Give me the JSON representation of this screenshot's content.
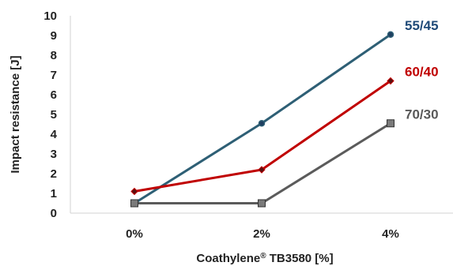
{
  "chart_data": {
    "type": "line",
    "categories": [
      "0%",
      "2%",
      "4%"
    ],
    "ylabel": "Impact resistance [J]",
    "xlabel": {
      "main": "Coathylene",
      "sup": "®",
      "rest": " TB3580 [%]"
    },
    "ylim": [
      0,
      10
    ],
    "yticks": [
      "0",
      "1",
      "2",
      "3",
      "4",
      "5",
      "6",
      "7",
      "8",
      "9",
      "10"
    ],
    "grid": false,
    "legend": "inline-right",
    "series": [
      {
        "name": "55/45",
        "values": [
          0.5,
          4.55,
          9.05
        ],
        "color": "#2e5f75",
        "label_color": "#1f4a78",
        "marker": "circle"
      },
      {
        "name": "60/40",
        "values": [
          1.1,
          2.2,
          6.7
        ],
        "color": "#c00000",
        "label_color": "#c00000",
        "marker": "diamond"
      },
      {
        "name": "70/30",
        "values": [
          0.5,
          0.5,
          4.55
        ],
        "color": "#5b5b5b",
        "label_color": "#595959",
        "marker": "square"
      }
    ]
  }
}
